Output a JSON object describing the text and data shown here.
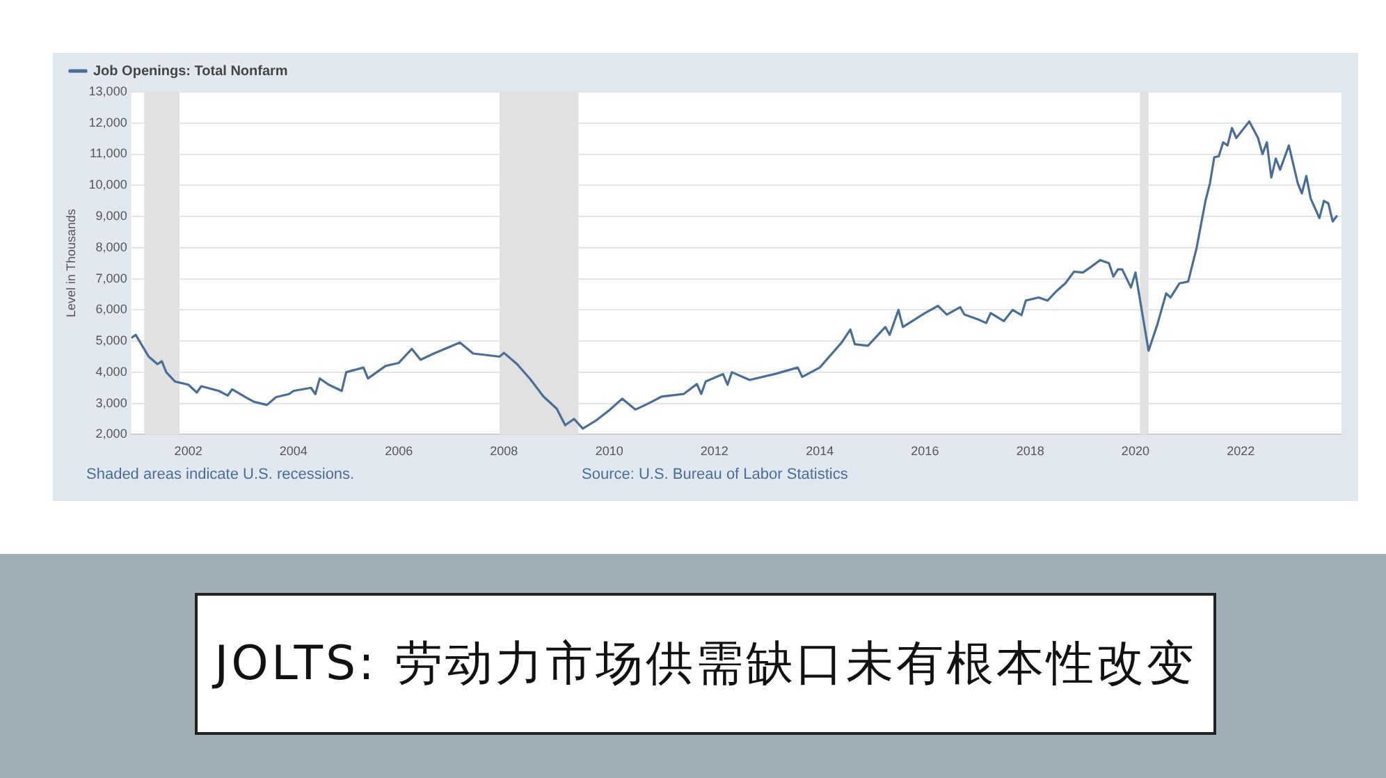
{
  "chart_data": {
    "type": "line",
    "title": "JOLTS: 劳动力市场供需缺口未有根本性改变",
    "ylabel": "Level in Thousands",
    "annotations": [
      "Shaded areas indicate U.S. recessions.",
      "Source: U.S. Bureau of Labor Statistics"
    ],
    "legend": "top left",
    "grid": "y",
    "marker": "none",
    "line_style": "solid",
    "xlim": [
      "2000-12",
      "2023-12"
    ],
    "xticks": [
      "2002",
      "2004",
      "2006",
      "2008",
      "2010",
      "2012",
      "2014",
      "2016",
      "2018",
      "2020",
      "2022"
    ],
    "ylim": [
      2000,
      13000
    ],
    "yticks": [
      {
        "value": 2000,
        "label": "2,000"
      },
      {
        "value": 3000,
        "label": "3,000"
      },
      {
        "value": 4000,
        "label": "4,000"
      },
      {
        "value": 5000,
        "label": "5,000"
      },
      {
        "value": 6000,
        "label": "6,000"
      },
      {
        "value": 7000,
        "label": "7,000"
      },
      {
        "value": 8000,
        "label": "8,000"
      },
      {
        "value": 9000,
        "label": "9,000"
      },
      {
        "value": 10000,
        "label": "10,000"
      },
      {
        "value": 11000,
        "label": "11,000"
      },
      {
        "value": 12000,
        "label": "12,000"
      },
      {
        "value": 13000,
        "label": "13,000"
      }
    ],
    "bands": [
      {
        "axis": "x",
        "from": "2001-03",
        "to": "2001-11",
        "color": "#e1e1e1"
      },
      {
        "axis": "x",
        "from": "2007-12",
        "to": "2009-06",
        "color": "#e1e1e1"
      },
      {
        "axis": "x",
        "from": "2020-02",
        "to": "2020-04",
        "color": "#e1e1e1"
      }
    ],
    "series": [
      {
        "name": "Job Openings: Total Nonfarm",
        "color": "#4a6d96",
        "x": [
          "2000-12",
          "2001-01",
          "2001-04",
          "2001-06",
          "2001-07",
          "2001-08",
          "2001-10",
          "2002-01",
          "2002-03",
          "2002-04",
          "2002-08",
          "2002-10",
          "2002-11",
          "2003-02",
          "2003-04",
          "2003-07",
          "2003-09",
          "2003-12",
          "2004-01",
          "2004-05",
          "2004-06",
          "2004-07",
          "2004-09",
          "2004-12",
          "2005-01",
          "2005-05",
          "2005-06",
          "2005-10",
          "2006-01",
          "2006-04",
          "2006-06",
          "2006-09",
          "2007-03",
          "2007-06",
          "2007-12",
          "2008-01",
          "2008-04",
          "2008-07",
          "2008-10",
          "2009-01",
          "2009-03",
          "2009-05",
          "2009-07",
          "2009-10",
          "2010-01",
          "2010-04",
          "2010-07",
          "2010-10",
          "2011-01",
          "2011-06",
          "2011-09",
          "2011-10",
          "2011-11",
          "2012-03",
          "2012-04",
          "2012-05",
          "2012-09",
          "2013-03",
          "2013-08",
          "2013-09",
          "2014-01",
          "2014-06",
          "2014-08",
          "2014-09",
          "2014-12",
          "2015-04",
          "2015-05",
          "2015-07",
          "2015-08",
          "2016-01",
          "2016-04",
          "2016-06",
          "2016-09",
          "2016-10",
          "2017-01",
          "2017-03",
          "2017-04",
          "2017-07",
          "2017-09",
          "2017-11",
          "2017-12",
          "2018-03",
          "2018-05",
          "2018-07",
          "2018-09",
          "2018-11",
          "2019-01",
          "2019-03",
          "2019-05",
          "2019-07",
          "2019-08",
          "2019-09",
          "2019-10",
          "2019-12",
          "2020-01",
          "2020-04",
          "2020-06",
          "2020-08",
          "2020-09",
          "2020-11",
          "2021-01",
          "2021-03",
          "2021-05",
          "2021-06",
          "2021-07",
          "2021-08",
          "2021-09",
          "2021-10",
          "2021-11",
          "2021-12",
          "2022-03",
          "2022-05",
          "2022-06",
          "2022-07",
          "2022-08",
          "2022-09",
          "2022-10",
          "2022-12",
          "2023-02",
          "2023-03",
          "2023-04",
          "2023-05",
          "2023-07",
          "2023-08",
          "2023-09",
          "2023-10",
          "2023-11"
        ],
        "values": [
          5100,
          5200,
          4500,
          4260,
          4350,
          4000,
          3700,
          3600,
          3350,
          3550,
          3400,
          3250,
          3450,
          3200,
          3050,
          2950,
          3200,
          3300,
          3400,
          3500,
          3300,
          3800,
          3600,
          3400,
          4000,
          4150,
          3800,
          4200,
          4300,
          4750,
          4400,
          4600,
          4950,
          4600,
          4500,
          4620,
          4260,
          3780,
          3220,
          2830,
          2300,
          2500,
          2190,
          2450,
          2780,
          3150,
          2800,
          3000,
          3220,
          3300,
          3620,
          3300,
          3700,
          3940,
          3600,
          4000,
          3750,
          3950,
          4150,
          3850,
          4150,
          4950,
          5370,
          4900,
          4850,
          5450,
          5200,
          6000,
          5450,
          5900,
          6130,
          5850,
          6090,
          5850,
          5700,
          5580,
          5900,
          5640,
          6000,
          5830,
          6300,
          6400,
          6300,
          6600,
          6850,
          7230,
          7200,
          7390,
          7600,
          7500,
          7070,
          7300,
          7300,
          6720,
          7200,
          4690,
          5530,
          6530,
          6400,
          6850,
          6910,
          8000,
          9500,
          10060,
          10900,
          10930,
          11380,
          11280,
          11840,
          11520,
          12050,
          11520,
          11000,
          11380,
          10250,
          10860,
          10500,
          11280,
          10060,
          9740,
          10300,
          9580,
          8950,
          9500,
          9420,
          8840,
          9030
        ]
      }
    ]
  }
}
